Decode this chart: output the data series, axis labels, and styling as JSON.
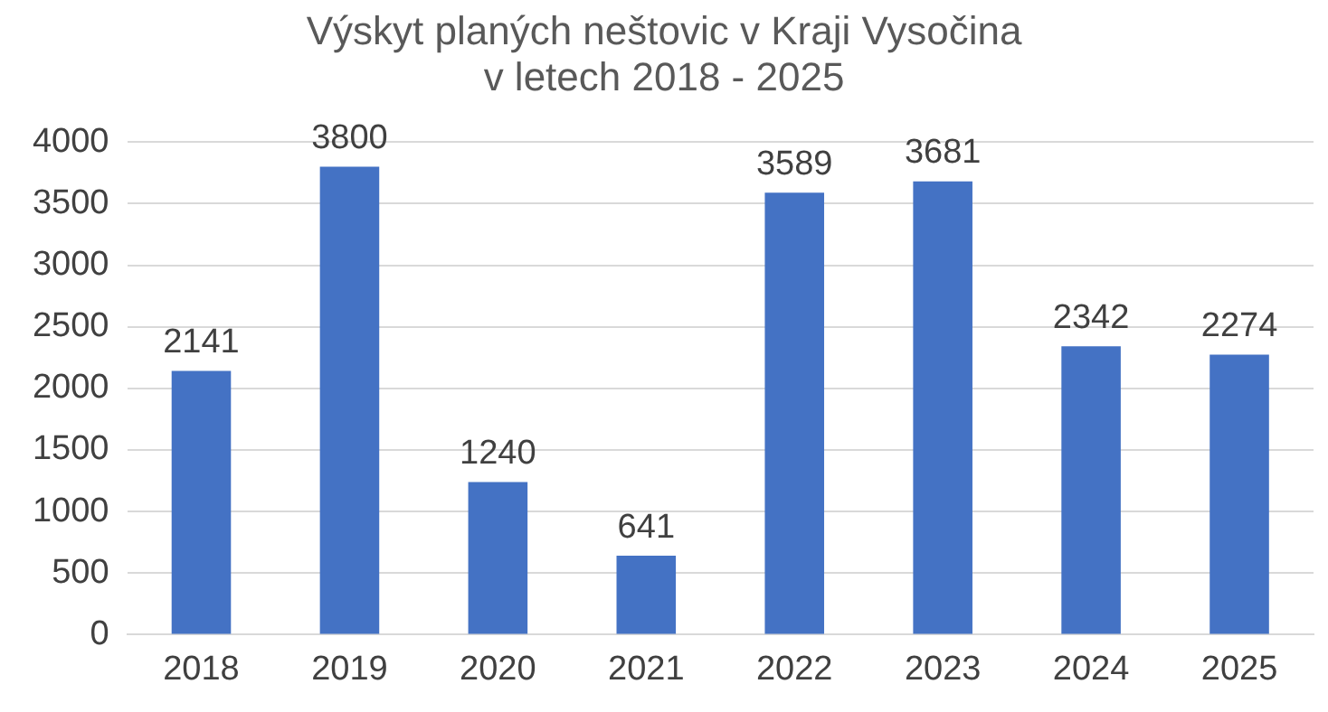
{
  "chart_data": {
    "type": "bar",
    "title": "Výskyt planých neštovic v Kraji Vysočina\nv letech 2018 - 2025",
    "categories": [
      "2018",
      "2019",
      "2020",
      "2021",
      "2022",
      "2023",
      "2024",
      "2025"
    ],
    "values": [
      2141,
      3800,
      1240,
      641,
      3589,
      3681,
      2342,
      2274
    ],
    "color": "#4472c4",
    "ylim": [
      0,
      4000
    ],
    "yticks": [
      0,
      500,
      1000,
      1500,
      2000,
      2500,
      3000,
      3500,
      4000
    ],
    "grid": "y",
    "data_labels": true
  }
}
